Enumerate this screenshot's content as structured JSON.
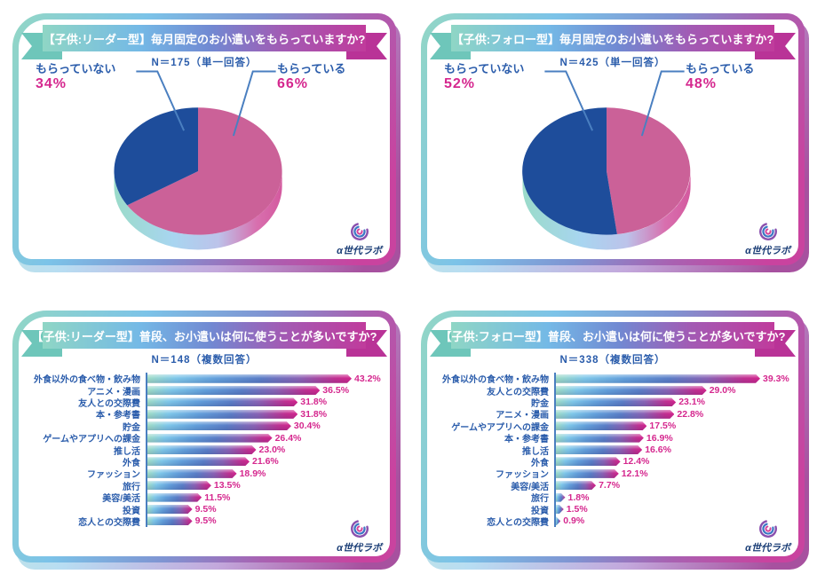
{
  "brand": {
    "logo_text": "α世代ラボ",
    "accent_teal": "#8fd6c5",
    "accent_blue": "#74b9e6",
    "accent_magenta": "#c9439f",
    "label_blue": "#2a5cab",
    "value_magenta": "#d5278e",
    "leader_line_blue": "#4a7fc0",
    "pie_yes_pink": "#cb6198",
    "pie_no_blue": "#1e4d9b"
  },
  "chart_data": [
    {
      "type": "pie",
      "title": "【子供:リーダー型】毎月固定のお小遣いをもらっていますか?",
      "n_label": "N＝175（単一回答）",
      "slices": [
        {
          "label": "もらっている",
          "value": 66,
          "display": "66%",
          "side": "right",
          "color": "#cb6198"
        },
        {
          "label": "もらっていない",
          "value": 34,
          "display": "34%",
          "side": "left",
          "color": "#1e4d9b"
        }
      ]
    },
    {
      "type": "pie",
      "title": "【子供:フォロー型】毎月固定のお小遣いをもらっていますか?",
      "n_label": "N＝425（単一回答）",
      "slices": [
        {
          "label": "もらっている",
          "value": 48,
          "display": "48%",
          "side": "right",
          "color": "#cb6198"
        },
        {
          "label": "もらっていない",
          "value": 52,
          "display": "52%",
          "side": "left",
          "color": "#1e4d9b"
        }
      ]
    },
    {
      "type": "bar",
      "title": "【子供:リーダー型】普段、お小遣いは何に使うことが多いですか?",
      "n_label": "N＝148（複数回答）",
      "items": [
        {
          "label": "外食以外の食べ物・飲み物",
          "value": 43.2
        },
        {
          "label": "アニメ・漫画",
          "value": 36.5
        },
        {
          "label": "友人との交際費",
          "value": 31.8
        },
        {
          "label": "本・参考書",
          "value": 31.8
        },
        {
          "label": "貯金",
          "value": 30.4
        },
        {
          "label": "ゲームやアプリへの課金",
          "value": 26.4
        },
        {
          "label": "推し活",
          "value": 23.0
        },
        {
          "label": "外食",
          "value": 21.6
        },
        {
          "label": "ファッション",
          "value": 18.9
        },
        {
          "label": "旅行",
          "value": 13.5
        },
        {
          "label": "美容/美活",
          "value": 11.5
        },
        {
          "label": "投資",
          "value": 9.5
        },
        {
          "label": "恋人との交際費",
          "value": 9.5
        }
      ]
    },
    {
      "type": "bar",
      "title": "【子供:フォロー型】普段、お小遣いは何に使うことが多いですか?",
      "n_label": "N＝338（複数回答）",
      "items": [
        {
          "label": "外食以外の食べ物・飲み物",
          "value": 39.3
        },
        {
          "label": "友人との交際費",
          "value": 29.0
        },
        {
          "label": "貯金",
          "value": 23.1
        },
        {
          "label": "アニメ・漫画",
          "value": 22.8
        },
        {
          "label": "ゲームやアプリへの課金",
          "value": 17.5
        },
        {
          "label": "本・参考書",
          "value": 16.9
        },
        {
          "label": "推し活",
          "value": 16.6
        },
        {
          "label": "外食",
          "value": 12.4
        },
        {
          "label": "ファッション",
          "value": 12.1
        },
        {
          "label": "美容/美活",
          "value": 7.7
        },
        {
          "label": "旅行",
          "value": 1.8
        },
        {
          "label": "投資",
          "value": 1.5
        },
        {
          "label": "恋人との交際費",
          "value": 0.9
        }
      ]
    }
  ]
}
